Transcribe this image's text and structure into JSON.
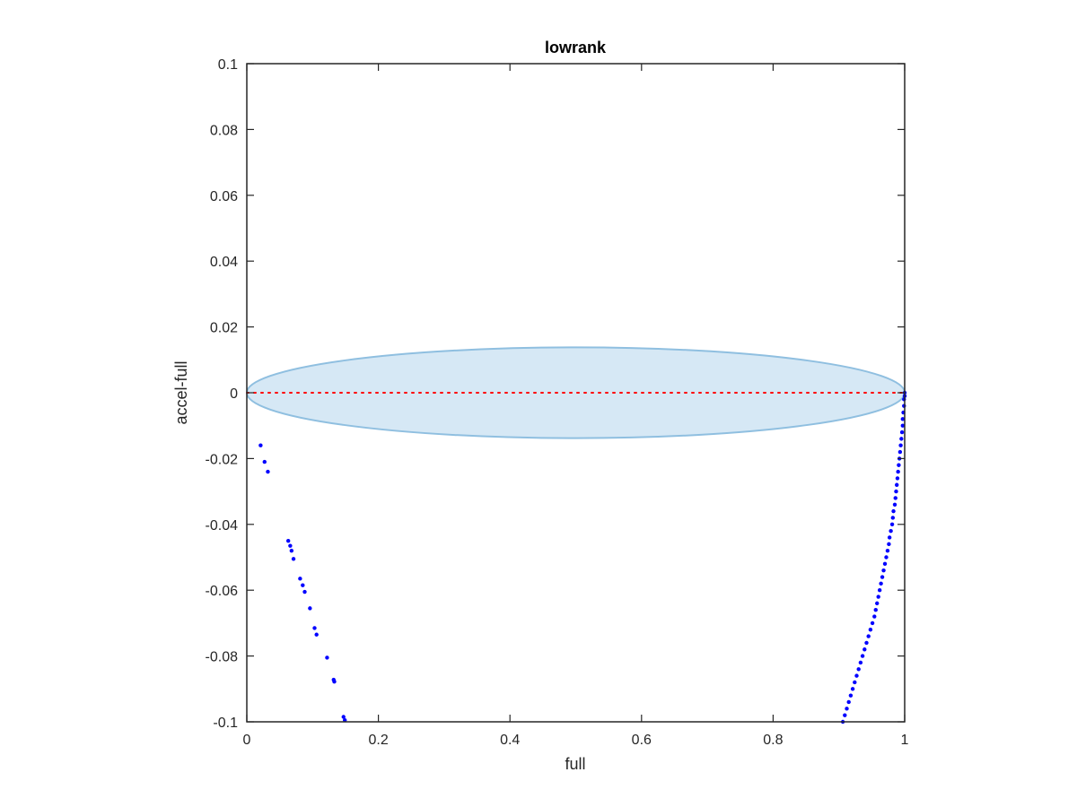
{
  "chart_data": {
    "type": "scatter",
    "title": "lowrank",
    "xlabel": "full",
    "ylabel": "accel-full",
    "xlim": [
      0,
      1
    ],
    "ylim": [
      -0.1,
      0.1
    ],
    "xticks": [
      0,
      0.2,
      0.4,
      0.6,
      0.8,
      1
    ],
    "xtick_labels": [
      "0",
      "0.2",
      "0.4",
      "0.6",
      "0.8",
      "1"
    ],
    "yticks": [
      0.1,
      0.08,
      0.06,
      0.04,
      0.02,
      0,
      -0.02,
      -0.04,
      -0.06,
      -0.08,
      -0.1
    ],
    "ytick_labels": [
      "0.1",
      "0.08",
      "0.06",
      "0.04",
      "0.02",
      "0",
      "-0.02",
      "-0.04",
      "-0.06",
      "-0.08",
      "-0.1"
    ],
    "grid": false,
    "colors": {
      "points": "#0000ff",
      "reference_line": "#ff0000",
      "ellipse_fill": "#d6e8f5",
      "ellipse_edge": "#8fbfe0",
      "axes": "#262626"
    },
    "ellipse": {
      "center": [
        0.5,
        0
      ],
      "semi_axis_x": 0.5,
      "semi_axis_y": 0.0138
    },
    "reference_line": {
      "y": 0,
      "style": "dotted"
    },
    "series": [
      {
        "values": [
          [
            0.021,
            -0.016
          ],
          [
            0.027,
            -0.021
          ],
          [
            0.032,
            -0.024
          ],
          [
            0.063,
            -0.045
          ],
          [
            0.066,
            -0.0465
          ],
          [
            0.068,
            -0.048
          ],
          [
            0.071,
            -0.0505
          ],
          [
            0.081,
            -0.0565
          ],
          [
            0.085,
            -0.0585
          ],
          [
            0.088,
            -0.0605
          ],
          [
            0.096,
            -0.0655
          ],
          [
            0.103,
            -0.0715
          ],
          [
            0.106,
            -0.0735
          ],
          [
            0.122,
            -0.0805
          ],
          [
            0.132,
            -0.0872
          ],
          [
            0.133,
            -0.0878
          ],
          [
            0.147,
            -0.0985
          ],
          [
            0.149,
            -0.0995
          ]
        ]
      },
      {
        "values": [
          [
            0.906,
            -0.1
          ],
          [
            0.909,
            -0.098
          ],
          [
            0.912,
            -0.096
          ],
          [
            0.915,
            -0.094
          ],
          [
            0.918,
            -0.092
          ],
          [
            0.921,
            -0.09
          ],
          [
            0.924,
            -0.088
          ],
          [
            0.927,
            -0.086
          ],
          [
            0.93,
            -0.084
          ],
          [
            0.933,
            -0.082
          ],
          [
            0.936,
            -0.08
          ],
          [
            0.939,
            -0.078
          ],
          [
            0.942,
            -0.076
          ],
          [
            0.945,
            -0.074
          ],
          [
            0.948,
            -0.072
          ],
          [
            0.951,
            -0.07
          ],
          [
            0.954,
            -0.068
          ],
          [
            0.956,
            -0.066
          ],
          [
            0.958,
            -0.064
          ],
          [
            0.96,
            -0.062
          ],
          [
            0.962,
            -0.06
          ],
          [
            0.964,
            -0.058
          ],
          [
            0.966,
            -0.056
          ],
          [
            0.968,
            -0.054
          ],
          [
            0.97,
            -0.052
          ],
          [
            0.972,
            -0.05
          ],
          [
            0.974,
            -0.048
          ],
          [
            0.976,
            -0.046
          ],
          [
            0.977,
            -0.044
          ],
          [
            0.979,
            -0.042
          ],
          [
            0.981,
            -0.04
          ],
          [
            0.982,
            -0.038
          ],
          [
            0.983,
            -0.036
          ],
          [
            0.985,
            -0.034
          ],
          [
            0.986,
            -0.032
          ],
          [
            0.987,
            -0.03
          ],
          [
            0.988,
            -0.028
          ],
          [
            0.989,
            -0.026
          ],
          [
            0.99,
            -0.024
          ],
          [
            0.991,
            -0.022
          ],
          [
            0.992,
            -0.02
          ],
          [
            0.993,
            -0.018
          ],
          [
            0.994,
            -0.016
          ],
          [
            0.995,
            -0.014
          ],
          [
            0.996,
            -0.012
          ],
          [
            0.997,
            -0.01
          ],
          [
            0.997,
            -0.008
          ],
          [
            0.998,
            -0.006
          ],
          [
            0.999,
            -0.004
          ],
          [
            0.999,
            -0.002
          ],
          [
            1.0,
            -0.001
          ],
          [
            1.0,
            0.0
          ]
        ]
      }
    ]
  }
}
